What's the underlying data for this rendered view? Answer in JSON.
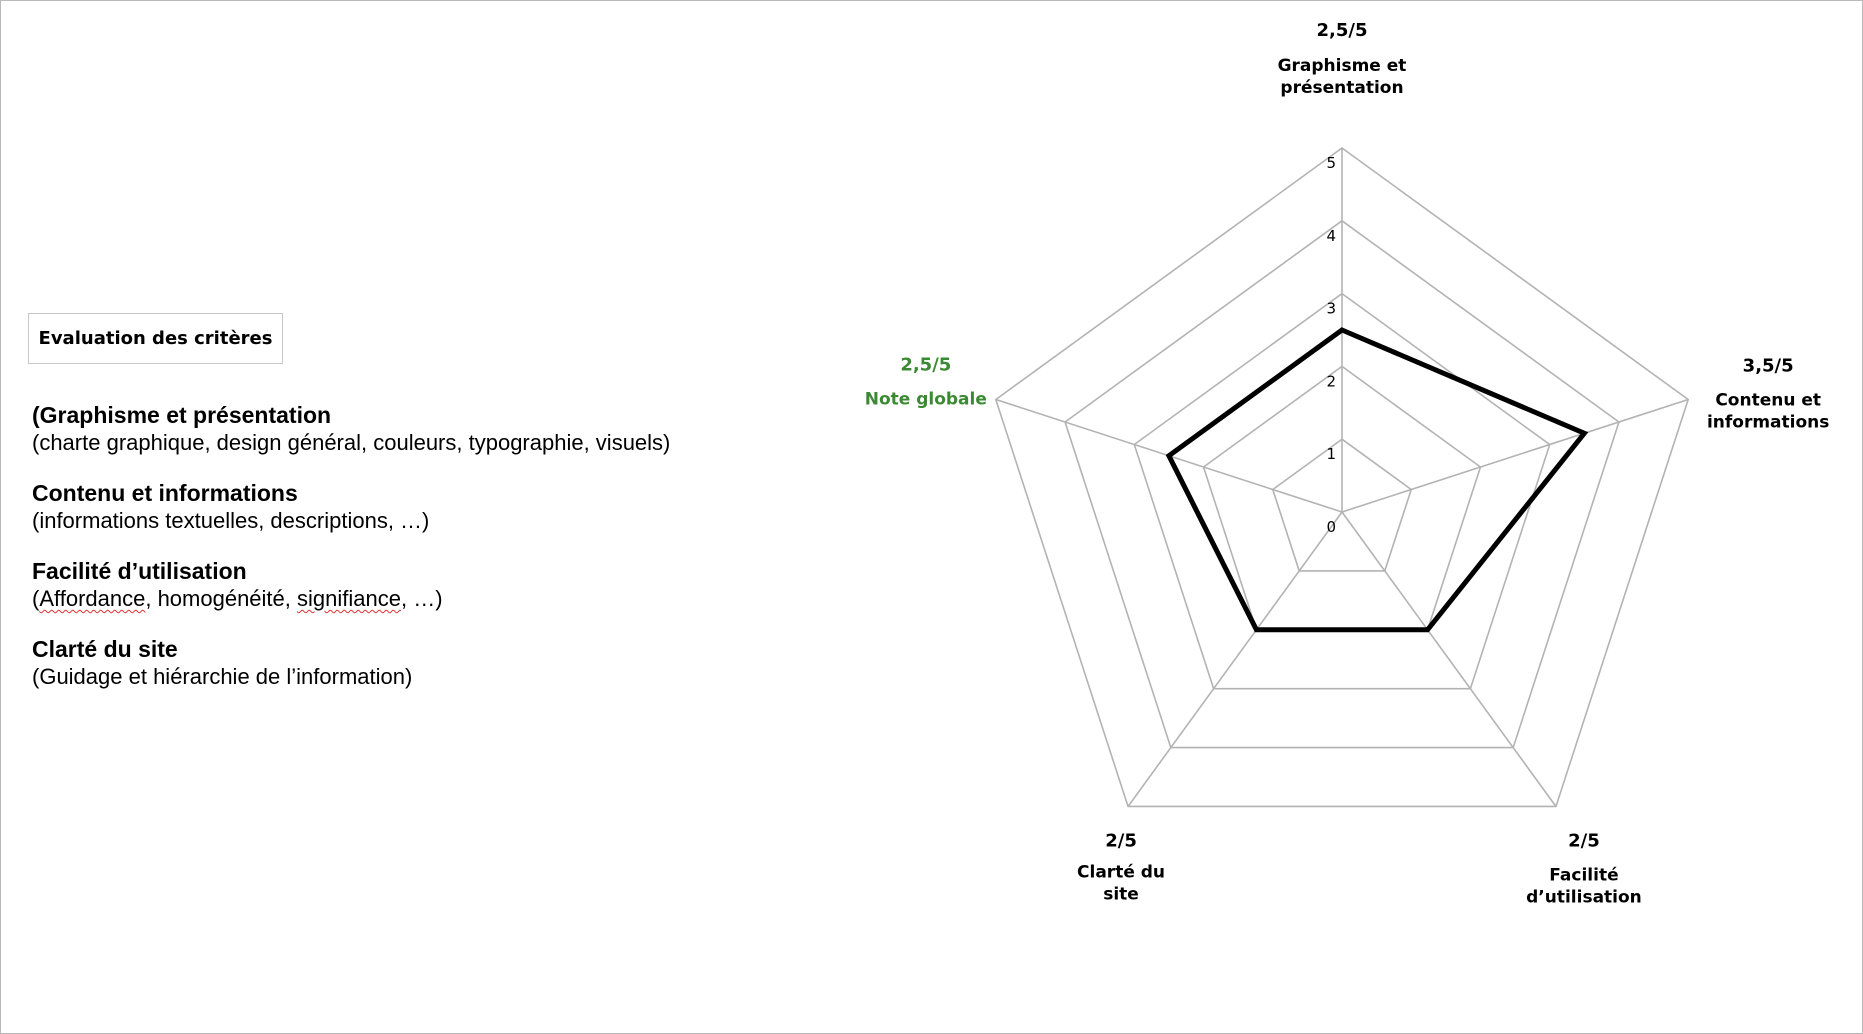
{
  "legend_box": {
    "title": "Evaluation des critères"
  },
  "criteria": [
    {
      "title": "(Graphisme et présentation",
      "desc_parts": [
        {
          "text": "(charte graphique, design général, couleurs, typographie, visuels)",
          "flag": false
        }
      ]
    },
    {
      "title": "Contenu et informations",
      "desc_parts": [
        {
          "text": "(informations textuelles, descriptions, …)",
          "flag": false
        }
      ]
    },
    {
      "title": "Facilité d’utilisation",
      "desc_parts": [
        {
          "text": "(",
          "flag": false
        },
        {
          "text": "Affordance",
          "flag": true
        },
        {
          "text": ", homogénéité, ",
          "flag": false
        },
        {
          "text": "signifiance",
          "flag": true
        },
        {
          "text": ", …)",
          "flag": false
        }
      ]
    },
    {
      "title": "Clarté du site",
      "desc_parts": [
        {
          "text": "(Guidage et hiérarchie de l’information)",
          "flag": false
        }
      ]
    }
  ],
  "chart_data": {
    "type": "radar",
    "axes": [
      {
        "label_lines": [
          "Graphisme et",
          "présentation"
        ],
        "score_text": "2,5/5",
        "value": 2.5,
        "label_color": "#000000"
      },
      {
        "label_lines": [
          "Contenu et",
          "informations"
        ],
        "score_text": "3,5/5",
        "value": 3.5,
        "label_color": "#000000"
      },
      {
        "label_lines": [
          "Facilité",
          "d’utilisation"
        ],
        "score_text": "2/5",
        "value": 2,
        "label_color": "#000000"
      },
      {
        "label_lines": [
          "Clarté du",
          "site"
        ],
        "score_text": "2/5",
        "value": 2,
        "label_color": "#000000"
      },
      {
        "label_lines": [
          "Note globale"
        ],
        "score_text": "2,5/5",
        "value": 2.5,
        "label_color": "#3b8a33"
      }
    ],
    "scale": {
      "min": 0,
      "max": 5,
      "ticks": [
        "0",
        "1",
        "2",
        "3",
        "4",
        "5"
      ]
    },
    "colors": {
      "grid": "#b3b3b3",
      "series": "#000000",
      "highlight": "#3b8a33"
    }
  }
}
